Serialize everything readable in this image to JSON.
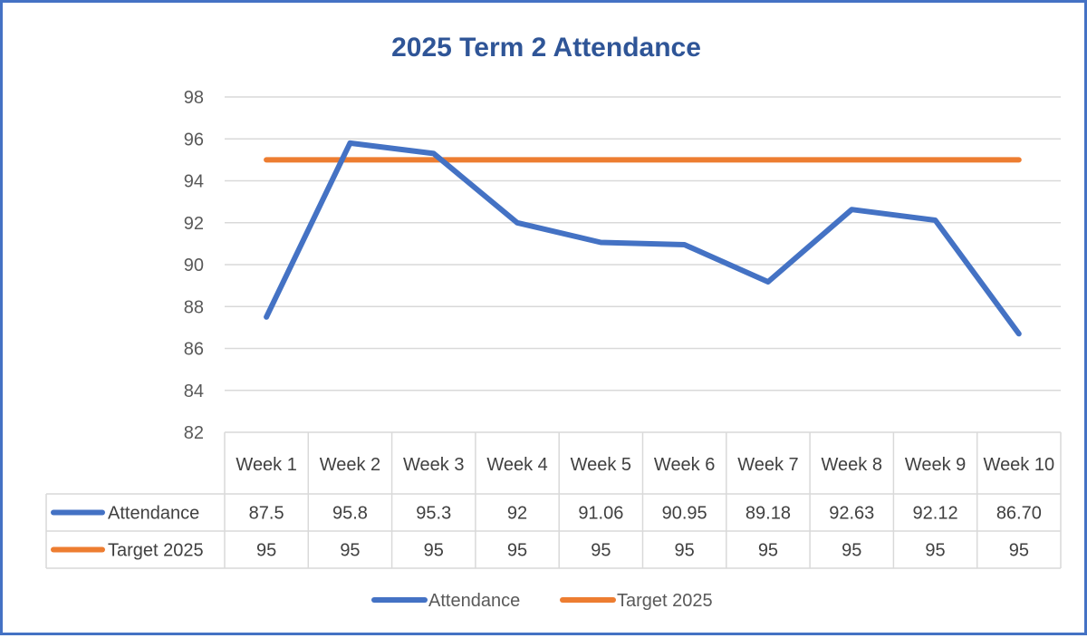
{
  "colors": {
    "frame": "#4472c4",
    "attendance": "#4472c4",
    "target": "#ed7d31",
    "title": "#2f5597",
    "grid": "#d9d9d9"
  },
  "chart_data": {
    "type": "line",
    "title": "2025 Term 2 Attendance",
    "xlabel": "",
    "ylabel": "",
    "categories": [
      "Week 1",
      "Week 2",
      "Week 3",
      "Week 4",
      "Week 5",
      "Week 6",
      "Week 7",
      "Week 8",
      "Week 9",
      "Week 10"
    ],
    "ylim": [
      82,
      98
    ],
    "y_ticks": [
      "82",
      "84",
      "86",
      "88",
      "90",
      "92",
      "94",
      "96",
      "98"
    ],
    "grid": true,
    "legend_position": "bottom",
    "series": [
      {
        "name": "Attendance",
        "color": "#4472c4",
        "values": [
          87.5,
          95.8,
          95.3,
          92,
          91.06,
          90.95,
          89.18,
          92.63,
          92.12,
          86.7
        ],
        "labels": [
          "87.5",
          "95.8",
          "95.3",
          "92",
          "91.06",
          "90.95",
          "89.18",
          "92.63",
          "92.12",
          "86.70"
        ]
      },
      {
        "name": "Target 2025",
        "color": "#ed7d31",
        "values": [
          95,
          95,
          95,
          95,
          95,
          95,
          95,
          95,
          95,
          95
        ],
        "labels": [
          "95",
          "95",
          "95",
          "95",
          "95",
          "95",
          "95",
          "95",
          "95",
          "95"
        ]
      }
    ]
  }
}
